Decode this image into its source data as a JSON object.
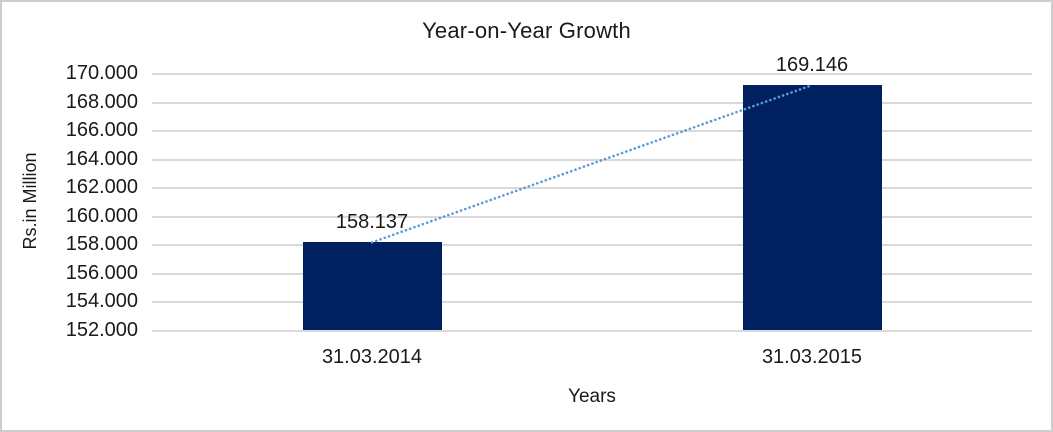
{
  "page": {
    "frame_border_color": "#cdcdcd",
    "background": "#ffffff"
  },
  "chart_data": {
    "type": "bar",
    "title": "Year-on-Year Growth",
    "xlabel": "Years",
    "ylabel": "Rs.in Million",
    "categories": [
      "31.03.2014",
      "31.03.2015"
    ],
    "values": [
      158.137,
      169.146
    ],
    "data_labels": [
      "158.137",
      "169.146"
    ],
    "ylim": [
      152,
      170
    ],
    "ytick_step": 2,
    "ytick_labels_top_to_bottom": [
      "170.000",
      "168.000",
      "166.000",
      "164.000",
      "162.000",
      "160.000",
      "158.000",
      "156.000",
      "154.000",
      "152.000"
    ],
    "grid": true,
    "legend": "none",
    "bar_color": "#002060",
    "gridline_color": "#d9d9d9",
    "text_color": "#1a1a1a",
    "trendline": {
      "style": "dotted",
      "color": "#5b9bd5",
      "from_value": 158.137,
      "to_value": 169.146
    }
  }
}
